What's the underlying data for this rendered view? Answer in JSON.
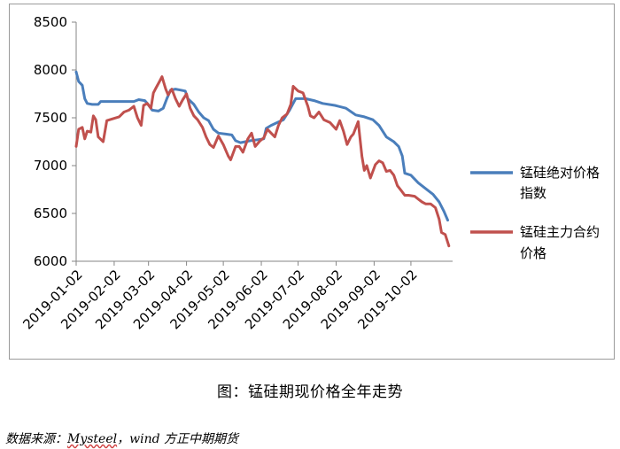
{
  "caption": "图：锰硅期现价格全年走势",
  "source": {
    "prefix": "数据来源：",
    "brand": "Mysteel",
    "rest": "，wind 方正中期期货"
  },
  "chart_data": {
    "type": "line",
    "title": "",
    "xlabel": "",
    "ylabel": "",
    "ylim": [
      6000,
      8500
    ],
    "yticks": [
      6000,
      6500,
      7000,
      7500,
      8000,
      8500
    ],
    "xticks": [
      "2019-01-02",
      "2019-02-02",
      "2019-03-02",
      "2019-04-02",
      "2019-05-02",
      "2019-06-02",
      "2019-07-02",
      "2019-08-02",
      "2019-09-02",
      "2019-10-02"
    ],
    "xrange": [
      "2019-01-02",
      "2019-11-05"
    ],
    "grid": false,
    "legend_position": "right",
    "series": [
      {
        "name": "锰硅绝对价格指数",
        "color": "#4a7ebb",
        "points": [
          [
            "2019-01-02",
            7980
          ],
          [
            "2019-01-04",
            7880
          ],
          [
            "2019-01-07",
            7840
          ],
          [
            "2019-01-09",
            7700
          ],
          [
            "2019-01-11",
            7650
          ],
          [
            "2019-01-15",
            7640
          ],
          [
            "2019-01-20",
            7640
          ],
          [
            "2019-01-22",
            7670
          ],
          [
            "2019-01-28",
            7670
          ],
          [
            "2019-02-10",
            7670
          ],
          [
            "2019-02-18",
            7670
          ],
          [
            "2019-02-22",
            7690
          ],
          [
            "2019-02-27",
            7680
          ],
          [
            "2019-03-01",
            7650
          ],
          [
            "2019-03-05",
            7580
          ],
          [
            "2019-03-10",
            7570
          ],
          [
            "2019-03-14",
            7600
          ],
          [
            "2019-03-17",
            7700
          ],
          [
            "2019-03-20",
            7790
          ],
          [
            "2019-03-24",
            7800
          ],
          [
            "2019-03-28",
            7790
          ],
          [
            "2019-04-01",
            7780
          ],
          [
            "2019-04-03",
            7700
          ],
          [
            "2019-04-08",
            7640
          ],
          [
            "2019-04-12",
            7560
          ],
          [
            "2019-04-16",
            7500
          ],
          [
            "2019-04-20",
            7470
          ],
          [
            "2019-04-24",
            7380
          ],
          [
            "2019-04-28",
            7340
          ],
          [
            "2019-05-04",
            7330
          ],
          [
            "2019-05-09",
            7320
          ],
          [
            "2019-05-12",
            7260
          ],
          [
            "2019-05-16",
            7240
          ],
          [
            "2019-05-24",
            7260
          ],
          [
            "2019-05-30",
            7270
          ],
          [
            "2019-06-04",
            7280
          ],
          [
            "2019-06-06",
            7390
          ],
          [
            "2019-06-10",
            7420
          ],
          [
            "2019-06-15",
            7450
          ],
          [
            "2019-06-20",
            7480
          ],
          [
            "2019-06-25",
            7580
          ],
          [
            "2019-06-30",
            7700
          ],
          [
            "2019-07-08",
            7700
          ],
          [
            "2019-07-15",
            7680
          ],
          [
            "2019-07-22",
            7650
          ],
          [
            "2019-08-01",
            7630
          ],
          [
            "2019-08-10",
            7600
          ],
          [
            "2019-08-18",
            7530
          ],
          [
            "2019-08-25",
            7510
          ],
          [
            "2019-09-01",
            7480
          ],
          [
            "2019-09-06",
            7420
          ],
          [
            "2019-09-12",
            7300
          ],
          [
            "2019-09-18",
            7250
          ],
          [
            "2019-09-22",
            7200
          ],
          [
            "2019-09-25",
            7100
          ],
          [
            "2019-09-27",
            6920
          ],
          [
            "2019-10-02",
            6900
          ],
          [
            "2019-10-08",
            6820
          ],
          [
            "2019-10-14",
            6760
          ],
          [
            "2019-10-20",
            6700
          ],
          [
            "2019-10-25",
            6620
          ],
          [
            "2019-10-29",
            6520
          ],
          [
            "2019-11-01",
            6430
          ]
        ]
      },
      {
        "name": "锰硅主力合约价格",
        "color": "#c0504d",
        "points": [
          [
            "2019-01-02",
            7200
          ],
          [
            "2019-01-04",
            7380
          ],
          [
            "2019-01-07",
            7400
          ],
          [
            "2019-01-09",
            7280
          ],
          [
            "2019-01-11",
            7360
          ],
          [
            "2019-01-14",
            7350
          ],
          [
            "2019-01-16",
            7520
          ],
          [
            "2019-01-18",
            7480
          ],
          [
            "2019-01-20",
            7300
          ],
          [
            "2019-01-24",
            7250
          ],
          [
            "2019-01-27",
            7470
          ],
          [
            "2019-02-01",
            7490
          ],
          [
            "2019-02-06",
            7510
          ],
          [
            "2019-02-10",
            7560
          ],
          [
            "2019-02-14",
            7580
          ],
          [
            "2019-02-18",
            7620
          ],
          [
            "2019-02-21",
            7500
          ],
          [
            "2019-02-24",
            7420
          ],
          [
            "2019-02-26",
            7630
          ],
          [
            "2019-03-01",
            7650
          ],
          [
            "2019-03-04",
            7600
          ],
          [
            "2019-03-06",
            7760
          ],
          [
            "2019-03-08",
            7810
          ],
          [
            "2019-03-11",
            7880
          ],
          [
            "2019-03-13",
            7930
          ],
          [
            "2019-03-16",
            7800
          ],
          [
            "2019-03-18",
            7740
          ],
          [
            "2019-03-21",
            7800
          ],
          [
            "2019-03-24",
            7700
          ],
          [
            "2019-03-27",
            7620
          ],
          [
            "2019-03-30",
            7690
          ],
          [
            "2019-04-02",
            7750
          ],
          [
            "2019-04-05",
            7600
          ],
          [
            "2019-04-08",
            7520
          ],
          [
            "2019-04-11",
            7480
          ],
          [
            "2019-04-15",
            7400
          ],
          [
            "2019-04-18",
            7300
          ],
          [
            "2019-04-21",
            7220
          ],
          [
            "2019-04-24",
            7190
          ],
          [
            "2019-04-28",
            7310
          ],
          [
            "2019-05-02",
            7220
          ],
          [
            "2019-05-06",
            7100
          ],
          [
            "2019-05-08",
            7060
          ],
          [
            "2019-05-12",
            7200
          ],
          [
            "2019-05-15",
            7200
          ],
          [
            "2019-05-18",
            7140
          ],
          [
            "2019-05-22",
            7280
          ],
          [
            "2019-05-25",
            7340
          ],
          [
            "2019-05-28",
            7200
          ],
          [
            "2019-06-01",
            7260
          ],
          [
            "2019-06-04",
            7290
          ],
          [
            "2019-06-07",
            7380
          ],
          [
            "2019-06-10",
            7340
          ],
          [
            "2019-06-13",
            7300
          ],
          [
            "2019-06-16",
            7420
          ],
          [
            "2019-06-19",
            7500
          ],
          [
            "2019-06-23",
            7540
          ],
          [
            "2019-06-26",
            7640
          ],
          [
            "2019-06-28",
            7830
          ],
          [
            "2019-07-02",
            7780
          ],
          [
            "2019-07-06",
            7760
          ],
          [
            "2019-07-10",
            7620
          ],
          [
            "2019-07-12",
            7520
          ],
          [
            "2019-07-15",
            7500
          ],
          [
            "2019-07-19",
            7560
          ],
          [
            "2019-07-23",
            7480
          ],
          [
            "2019-07-28",
            7450
          ],
          [
            "2019-08-02",
            7380
          ],
          [
            "2019-08-05",
            7470
          ],
          [
            "2019-08-08",
            7360
          ],
          [
            "2019-08-11",
            7220
          ],
          [
            "2019-08-14",
            7300
          ],
          [
            "2019-08-16",
            7330
          ],
          [
            "2019-08-20",
            7460
          ],
          [
            "2019-08-23",
            7100
          ],
          [
            "2019-08-25",
            6950
          ],
          [
            "2019-08-27",
            7000
          ],
          [
            "2019-08-30",
            6870
          ],
          [
            "2019-09-03",
            7010
          ],
          [
            "2019-09-06",
            7050
          ],
          [
            "2019-09-09",
            7030
          ],
          [
            "2019-09-12",
            6940
          ],
          [
            "2019-09-15",
            6950
          ],
          [
            "2019-09-18",
            6900
          ],
          [
            "2019-09-21",
            6790
          ],
          [
            "2019-09-24",
            6740
          ],
          [
            "2019-09-27",
            6690
          ],
          [
            "2019-09-30",
            6690
          ],
          [
            "2019-10-05",
            6680
          ],
          [
            "2019-10-08",
            6650
          ],
          [
            "2019-10-11",
            6620
          ],
          [
            "2019-10-14",
            6600
          ],
          [
            "2019-10-18",
            6600
          ],
          [
            "2019-10-22",
            6560
          ],
          [
            "2019-10-25",
            6440
          ],
          [
            "2019-10-27",
            6300
          ],
          [
            "2019-10-30",
            6280
          ],
          [
            "2019-11-02",
            6160
          ]
        ]
      }
    ]
  }
}
